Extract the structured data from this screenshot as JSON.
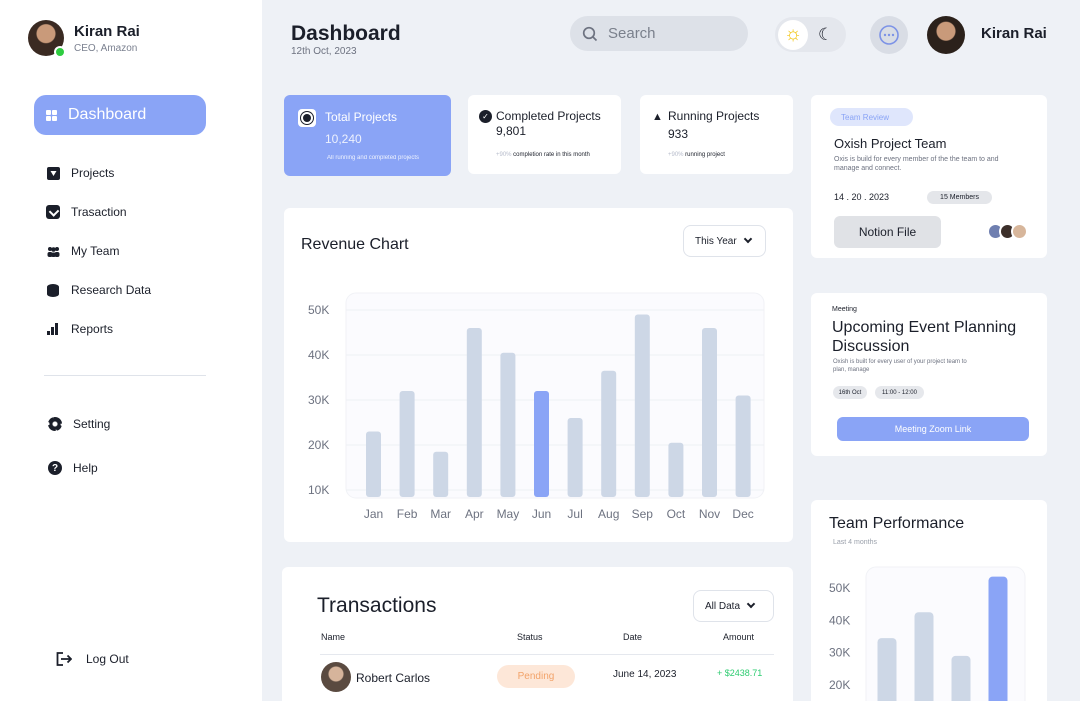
{
  "sidebar": {
    "profile": {
      "name": "Kiran Rai",
      "role": "CEO, Amazon"
    },
    "active_item": "Dashboard",
    "items": [
      {
        "label": "Projects",
        "icon": "shield-icon"
      },
      {
        "label": "Trasaction",
        "icon": "check-shield-icon"
      },
      {
        "label": "My Team",
        "icon": "team-icon"
      },
      {
        "label": "Research Data",
        "icon": "database-icon"
      },
      {
        "label": "Reports",
        "icon": "bar-chart-icon"
      }
    ],
    "bottom_items": [
      {
        "label": "Setting",
        "icon": "gear-icon"
      },
      {
        "label": "Help",
        "icon": "help-icon"
      }
    ],
    "logout": "Log Out"
  },
  "header": {
    "title": "Dashboard",
    "date": "12th Oct, 2023",
    "search_placeholder": "Search",
    "user_name": "Kiran Rai"
  },
  "stats": [
    {
      "label": "Total Projects",
      "value": "10,240",
      "note": "All running and completed projects"
    },
    {
      "label": "Completed Projects",
      "value": "9,801",
      "note_highlight": "+90%",
      "note": " completion rate in this month"
    },
    {
      "label": "Running Projects",
      "value": "933",
      "note_highlight": "+90%",
      "note": " running project"
    }
  ],
  "revenue": {
    "title": "Revenue Chart",
    "filter": "This Year",
    "highlight_color": "#8aa4f6",
    "bar_color": "#cdd7e6"
  },
  "chart_data": [
    {
      "type": "bar",
      "title": "Revenue Chart",
      "categories": [
        "Jan",
        "Feb",
        "Mar",
        "Apr",
        "May",
        "Jun",
        "Jul",
        "Aug",
        "Sep",
        "Oct",
        "Nov",
        "Dec"
      ],
      "values": [
        23000,
        32000,
        18500,
        46000,
        40500,
        32000,
        26000,
        36500,
        49000,
        20500,
        46000,
        31000
      ],
      "highlight_index": 5,
      "yticks": [
        "50K",
        "40K",
        "30K",
        "20K",
        "10K"
      ],
      "ylim": [
        10000,
        50000
      ],
      "grid": true
    },
    {
      "type": "bar",
      "title": "Team Performance",
      "subtitle": "Last 4 months",
      "categories": [
        "",
        "",
        "",
        ""
      ],
      "values": [
        34500,
        42500,
        29000,
        53500
      ],
      "highlight_index": 3,
      "yticks": [
        "50K",
        "40K",
        "30K",
        "20K"
      ],
      "ylim": [
        20000,
        50000
      ]
    }
  ],
  "transactions": {
    "title": "Transactions",
    "filter": "All Data",
    "columns": [
      "Name",
      "Status",
      "Date",
      "Amount"
    ],
    "rows": [
      {
        "name": "Robert Carlos",
        "status": "Pending",
        "date": "June 14, 2023",
        "amount": "+ $2438.71"
      }
    ]
  },
  "team_review": {
    "badge": "Team Review",
    "title": "Oxish Project Team",
    "description": "Oxis is build for every member of the the team to and manage and connect.",
    "date": "14 . 20 . 2023",
    "members": "15 Members",
    "button": "Notion File"
  },
  "meeting": {
    "tag": "Meeting",
    "title": "Upcoming Event Planning Discussion",
    "description": "Oxish is built for every user of your project team to plan, manage",
    "date_chip": "16th Oct",
    "time_chip": "11:00 - 12:00",
    "button": "Meeting Zoom Link"
  },
  "performance": {
    "title": "Team Performance",
    "subtitle": "Last 4 months"
  }
}
